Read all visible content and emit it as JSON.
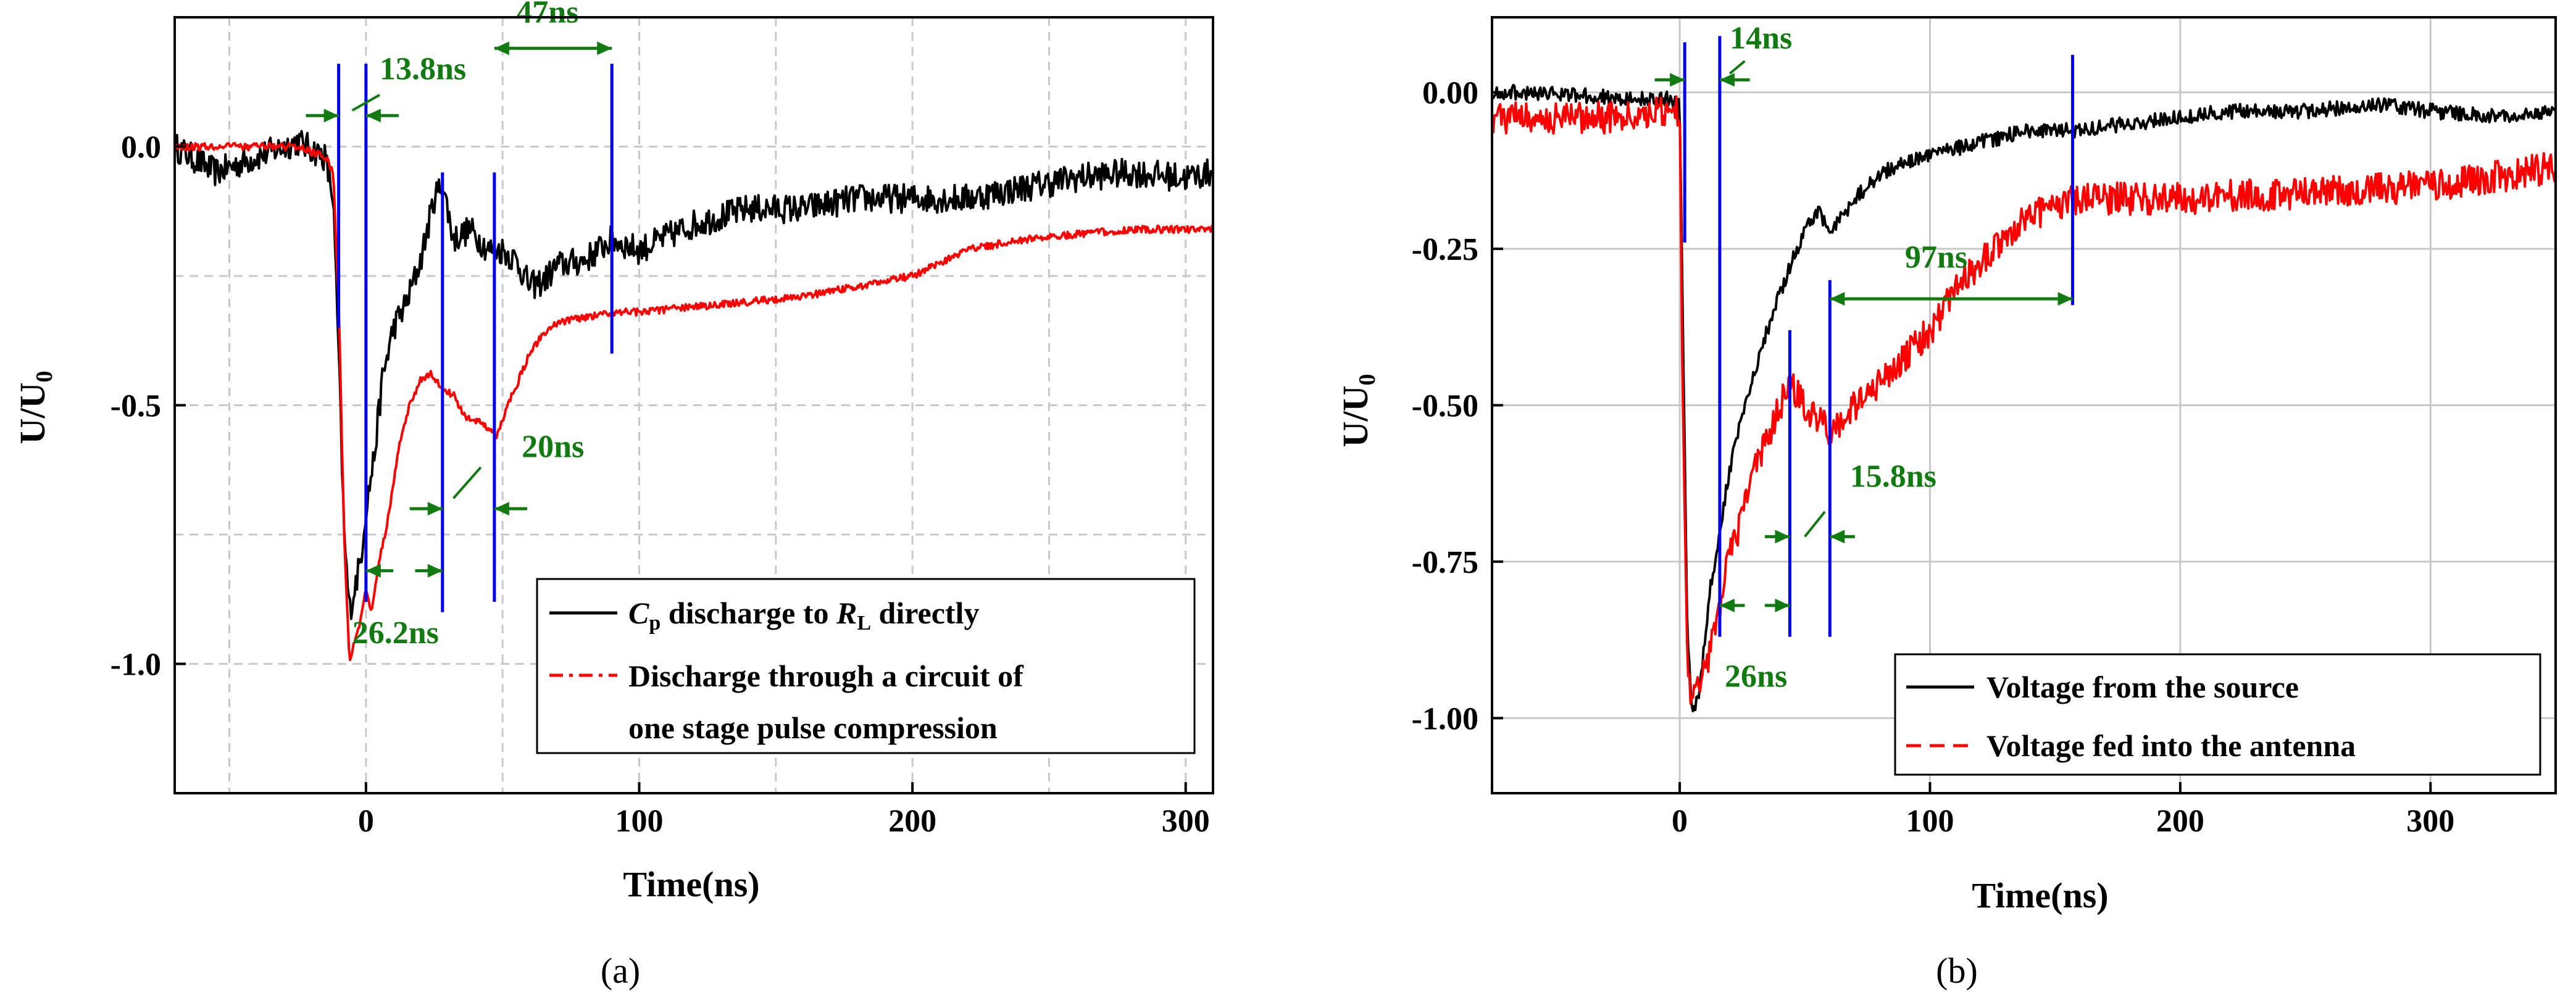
{
  "colors": {
    "black_trace": "#000000",
    "red_trace": "#ff0000",
    "marker": "#0000ee",
    "annotation": "#117a11",
    "grid": "#c8c8c8"
  },
  "chart_data": [
    {
      "id": "a",
      "type": "line",
      "caption": "(a)",
      "xlabel": "Time(ns)",
      "ylabel_main": "U/U",
      "ylabel_sub": "0",
      "xlim": [
        -70,
        310
      ],
      "ylim": [
        -1.25,
        0.25
      ],
      "xticks": [
        0,
        100,
        200,
        300
      ],
      "xtick_labels": [
        "0",
        "100",
        "200",
        "300"
      ],
      "yticks": [
        0.0,
        -0.5,
        -1.0
      ],
      "ytick_labels": [
        "0.0",
        "-0.5",
        "-1.0"
      ],
      "grid": true,
      "series": [
        {
          "name": "C_p discharge to R_L directly",
          "color": "#000000",
          "dash": "solid",
          "x": [
            -70,
            -55,
            -40,
            -25,
            -15,
            -12,
            -10,
            -8,
            -6,
            -4,
            -2,
            0,
            3,
            6,
            10,
            15,
            20,
            25,
            28,
            32,
            38,
            45,
            50,
            55,
            60,
            65,
            70,
            80,
            90,
            100,
            120,
            140,
            160,
            180,
            200,
            220,
            240,
            260,
            280,
            300,
            310
          ],
          "y": [
            0.0,
            -0.05,
            -0.02,
            0.01,
            -0.02,
            -0.1,
            -0.4,
            -0.75,
            -0.9,
            -0.85,
            -0.8,
            -0.7,
            -0.6,
            -0.45,
            -0.35,
            -0.3,
            -0.22,
            -0.1,
            -0.07,
            -0.18,
            -0.16,
            -0.2,
            -0.2,
            -0.22,
            -0.27,
            -0.26,
            -0.23,
            -0.22,
            -0.18,
            -0.2,
            -0.15,
            -0.12,
            -0.12,
            -0.1,
            -0.1,
            -0.1,
            -0.08,
            -0.06,
            -0.05,
            -0.06,
            -0.05
          ],
          "noise": 0.028
        },
        {
          "name": "Discharge through a circuit of one stage pulse compression",
          "color": "#ff0000",
          "dash": "solid",
          "x": [
            -70,
            -55,
            -40,
            -25,
            -15,
            -12,
            -10,
            -8,
            -6,
            -4,
            -2,
            0,
            2,
            5,
            8,
            12,
            16,
            20,
            24,
            28,
            32,
            36,
            40,
            44,
            48,
            52,
            56,
            60,
            65,
            70,
            80,
            90,
            100,
            120,
            140,
            160,
            180,
            200,
            220,
            240,
            260,
            280,
            300,
            310
          ],
          "y": [
            0.0,
            0.0,
            0.0,
            0.0,
            -0.02,
            -0.05,
            -0.3,
            -0.75,
            -1.0,
            -0.95,
            -0.92,
            -0.85,
            -0.9,
            -0.8,
            -0.72,
            -0.58,
            -0.5,
            -0.45,
            -0.44,
            -0.47,
            -0.48,
            -0.52,
            -0.53,
            -0.54,
            -0.56,
            -0.5,
            -0.45,
            -0.4,
            -0.36,
            -0.34,
            -0.33,
            -0.32,
            -0.32,
            -0.31,
            -0.3,
            -0.29,
            -0.27,
            -0.25,
            -0.2,
            -0.18,
            -0.17,
            -0.16,
            -0.16,
            -0.16
          ],
          "noise": 0.007
        }
      ],
      "markers_x": [
        -10,
        0,
        28,
        47,
        90
      ],
      "annotations": [
        {
          "text": "13.8ns",
          "arrows": [
            [
              -22,
              -10,
              0.06
            ],
            [
              12,
              0,
              0.06
            ]
          ],
          "slash": [
            [
              -5,
              0.07
            ],
            [
              5,
              0.1
            ]
          ],
          "label_at": [
            5,
            0.13
          ]
        },
        {
          "text": "47ns",
          "arrows": [
            [
              47,
              90,
              0.19
            ]
          ],
          "label_at": [
            55,
            0.24
          ]
        },
        {
          "text": "20ns",
          "arrows": [
            [
              16,
              28,
              -0.7
            ],
            [
              59,
              47,
              -0.7
            ]
          ],
          "slash": [
            [
              32,
              -0.68
            ],
            [
              42,
              -0.62
            ]
          ],
          "label_at": [
            57,
            -0.6
          ]
        },
        {
          "text": "26.2ns",
          "arrows": [
            [
              10,
              0,
              -0.82
            ],
            [
              18,
              28,
              -0.82
            ]
          ],
          "label_at": [
            -5,
            -0.96
          ]
        }
      ],
      "legend": [
        {
          "pre": "C",
          "pre_sub": "p",
          "mid": " discharge to ",
          "mid_italic": "R",
          "mid_sub": "L",
          "post": " directly"
        },
        {
          "line1": "Discharge through a circuit of",
          "line2": "one stage pulse compression"
        }
      ]
    },
    {
      "id": "b",
      "type": "line",
      "caption": "(b)",
      "xlabel": "Time(ns)",
      "ylabel_main": "U/U",
      "ylabel_sub": "0",
      "xlim": [
        -75,
        350
      ],
      "ylim": [
        -1.12,
        0.12
      ],
      "xticks": [
        0,
        100,
        200,
        300
      ],
      "xtick_labels": [
        "0",
        "100",
        "200",
        "300"
      ],
      "yticks": [
        0.0,
        -0.25,
        -0.5,
        -0.75,
        -1.0
      ],
      "ytick_labels": [
        "0.00",
        "-0.25",
        "-0.50",
        "-0.75",
        "-1.00"
      ],
      "grid": true,
      "series": [
        {
          "name": "Voltage from the source",
          "color": "#000000",
          "dash": "solid",
          "x": [
            -75,
            -50,
            -25,
            -5,
            0,
            1,
            3,
            5,
            8,
            12,
            16,
            20,
            25,
            30,
            35,
            40,
            45,
            50,
            55,
            60,
            65,
            70,
            80,
            90,
            100,
            120,
            140,
            160,
            180,
            200,
            220,
            250,
            280,
            300,
            330,
            350
          ],
          "y": [
            0.0,
            0.0,
            -0.01,
            -0.01,
            -0.02,
            -0.3,
            -0.85,
            -1.0,
            -0.95,
            -0.8,
            -0.7,
            -0.6,
            -0.52,
            -0.45,
            -0.38,
            -0.32,
            -0.27,
            -0.22,
            -0.19,
            -0.22,
            -0.2,
            -0.17,
            -0.13,
            -0.11,
            -0.1,
            -0.08,
            -0.06,
            -0.06,
            -0.05,
            -0.04,
            -0.03,
            -0.03,
            -0.02,
            -0.03,
            -0.04,
            -0.03
          ],
          "noise": 0.012
        },
        {
          "name": "Voltage fed into the antenna",
          "color": "#ff0000",
          "dash": "solid",
          "x": [
            -75,
            -50,
            -25,
            -5,
            0,
            1,
            3,
            5,
            8,
            12,
            16,
            20,
            25,
            30,
            35,
            40,
            45,
            50,
            55,
            60,
            70,
            80,
            90,
            100,
            110,
            120,
            130,
            140,
            150,
            160,
            200,
            250,
            300,
            350
          ],
          "y": [
            -0.04,
            -0.04,
            -0.04,
            -0.03,
            -0.03,
            -0.4,
            -0.9,
            -0.98,
            -0.95,
            -0.9,
            -0.82,
            -0.74,
            -0.68,
            -0.6,
            -0.55,
            -0.5,
            -0.47,
            -0.5,
            -0.52,
            -0.54,
            -0.5,
            -0.46,
            -0.42,
            -0.38,
            -0.32,
            -0.27,
            -0.23,
            -0.2,
            -0.18,
            -0.17,
            -0.17,
            -0.16,
            -0.15,
            -0.12
          ],
          "noise": 0.026
        }
      ],
      "markers_x": [
        2,
        16,
        44,
        60,
        157
      ],
      "annotations": [
        {
          "text": "14ns",
          "arrows": [
            [
              -10,
              2,
              0.02
            ],
            [
              28,
              16,
              0.02
            ]
          ],
          "slash": [
            [
              20,
              0.03
            ],
            [
              26,
              0.05
            ]
          ],
          "label_at": [
            20,
            0.07
          ]
        },
        {
          "text": "97ns",
          "arrows": [
            [
              60,
              157,
              -0.33
            ]
          ],
          "label_at": [
            90,
            -0.28
          ]
        },
        {
          "text": "15.8ns",
          "arrows": [
            [
              34,
              44,
              -0.71
            ],
            [
              70,
              60,
              -0.71
            ]
          ],
          "slash": [
            [
              50,
              -0.71
            ],
            [
              58,
              -0.67
            ]
          ],
          "label_at": [
            68,
            -0.63
          ]
        },
        {
          "text": "26ns",
          "arrows": [
            [
              26,
              16,
              -0.82
            ],
            [
              34,
              44,
              -0.82
            ]
          ],
          "label_at": [
            18,
            -0.95
          ]
        }
      ],
      "legend": [
        {
          "text": "Voltage from the source"
        },
        {
          "text": "Voltage fed into the antenna"
        }
      ]
    }
  ]
}
